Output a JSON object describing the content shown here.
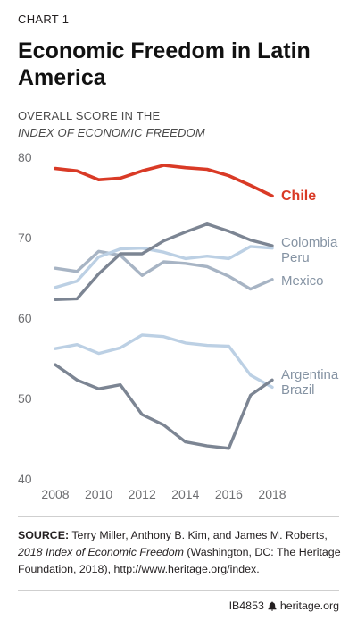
{
  "header": {
    "chart_label": "CHART 1",
    "title": "Economic Freedom in Latin America",
    "subtitle_line1": "OVERALL SCORE IN THE",
    "subtitle_line2": "INDEX OF ECONOMIC FREEDOM"
  },
  "source": {
    "prefix": "SOURCE:",
    "authors": " Terry Miller, Anthony B. Kim, and James M. Roberts, ",
    "publication": "2018 Index of Economic Freedom",
    "details": " (Washington, DC: The Heritage Foundation, 2018), http://www.heritage.org/index."
  },
  "footer": {
    "report_id": "IB4853",
    "site": "heritage.org"
  },
  "colors": {
    "highlight": "#d93a26",
    "dark_series": "#7c8593",
    "medium_series": "#a7b4c4",
    "light_series": "#bcd0e4",
    "axis_text": "#6d6e71"
  },
  "chart_data": {
    "type": "line",
    "title": "Economic Freedom in Latin America",
    "ylabel": "OVERALL SCORE IN THE INDEX OF ECONOMIC FREEDOM",
    "xlabel": "",
    "x": [
      2008,
      2009,
      2010,
      2011,
      2012,
      2013,
      2014,
      2015,
      2016,
      2017,
      2018
    ],
    "xticks": [
      2008,
      2010,
      2012,
      2014,
      2016,
      2018
    ],
    "yticks": [
      40,
      50,
      60,
      70,
      80
    ],
    "ylim": [
      40,
      80
    ],
    "grid": false,
    "legend": "direct labels at right",
    "series": [
      {
        "name": "Chile",
        "color": "#d93a26",
        "values": [
          78.6,
          78.3,
          77.2,
          77.4,
          78.3,
          79.0,
          78.7,
          78.5,
          77.7,
          76.5,
          75.2
        ]
      },
      {
        "name": "Colombia",
        "color": "#7c8593",
        "values": [
          62.3,
          62.4,
          65.5,
          68.0,
          68.0,
          69.6,
          70.7,
          71.7,
          70.8,
          69.7,
          69.0
        ]
      },
      {
        "name": "Peru",
        "color": "#bcd0e4",
        "values": [
          63.8,
          64.6,
          67.6,
          68.6,
          68.7,
          68.2,
          67.4,
          67.7,
          67.4,
          68.9,
          68.7
        ]
      },
      {
        "name": "Mexico",
        "color": "#a7b4c4",
        "values": [
          66.2,
          65.8,
          68.3,
          67.8,
          65.3,
          67.0,
          66.8,
          66.4,
          65.2,
          63.6,
          64.8
        ]
      },
      {
        "name": "Argentina",
        "color": "#7c8593",
        "values": [
          54.2,
          52.3,
          51.2,
          51.7,
          48.0,
          46.7,
          44.6,
          44.1,
          43.8,
          50.4,
          52.3
        ]
      },
      {
        "name": "Brazil",
        "color": "#bcd0e4",
        "values": [
          56.2,
          56.7,
          55.6,
          56.3,
          57.9,
          57.7,
          56.9,
          56.6,
          56.5,
          52.9,
          51.4
        ]
      }
    ]
  }
}
